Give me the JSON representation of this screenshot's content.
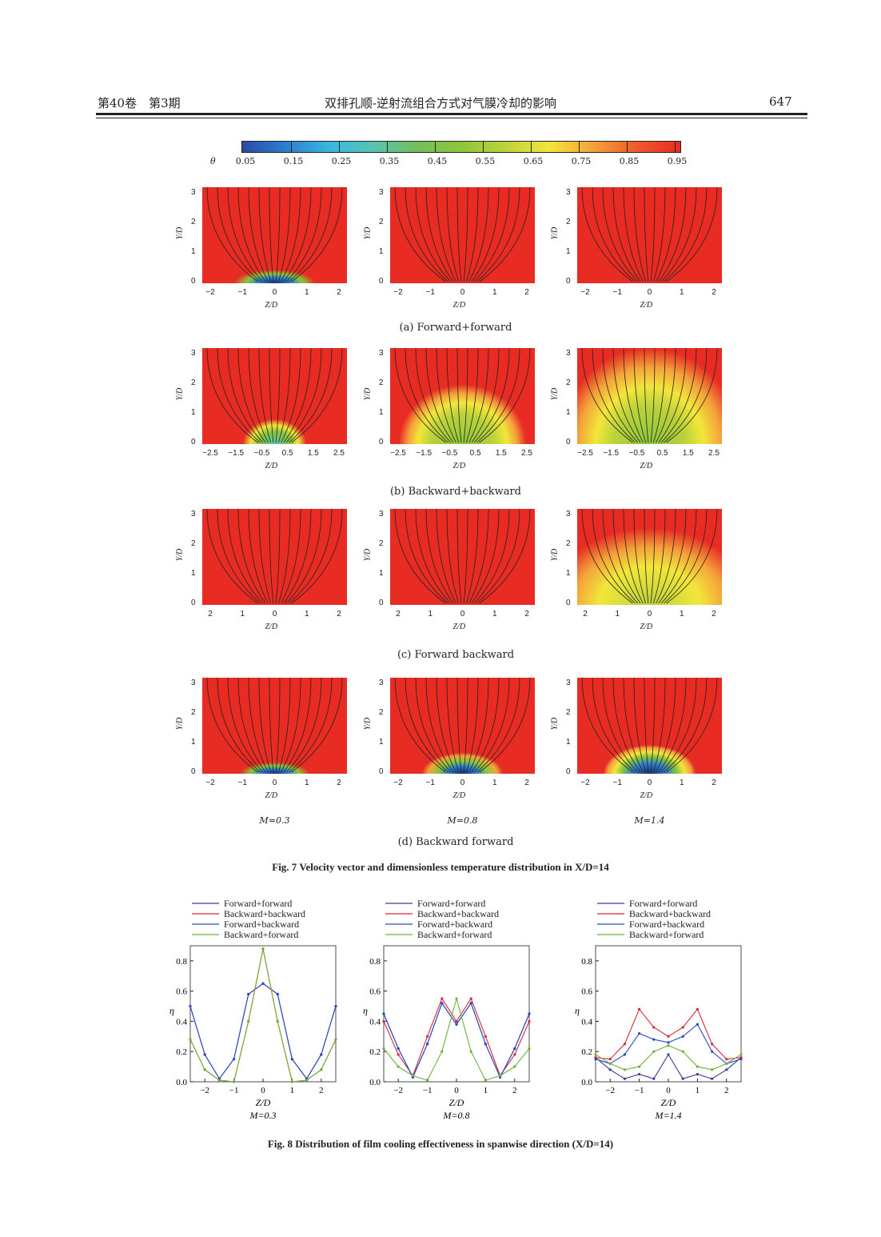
{
  "header": {
    "left": "第40卷　第3期",
    "center": "双排孔顺-逆射流组合方式对气膜冷却的影响",
    "page": "647"
  },
  "colorbar": {
    "symbol": "θ",
    "ticks": [
      "0.05",
      "0.15",
      "0.25",
      "0.35",
      "0.45",
      "0.55",
      "0.65",
      "0.75",
      "0.85",
      "0.95"
    ],
    "colors": [
      "#2a4aa8",
      "#2c7fd0",
      "#3ab7e0",
      "#58c3b0",
      "#74bf5a",
      "#8cc63a",
      "#bcd23a",
      "#f2e63a",
      "#f4a23a",
      "#ee5a2c",
      "#e82c24"
    ]
  },
  "fig7": {
    "rows": [
      {
        "label": "(a)  Forward+forward",
        "xticks": [
          "−2",
          "−1",
          "0",
          "1",
          "2"
        ]
      },
      {
        "label": "(b) Backward+backward",
        "xticks": [
          "−2.5",
          "−1.5",
          "−0.5",
          "0.5",
          "1.5",
          "2.5"
        ]
      },
      {
        "label": "(c) Forward  backward",
        "xticks": [
          "2",
          "1",
          "0",
          "1",
          "2"
        ]
      },
      {
        "label": "(d) Backward  forward",
        "xticks": [
          "−2",
          "−1",
          "0",
          "1",
          "2"
        ]
      }
    ],
    "yticks": [
      "0",
      "1",
      "2",
      "3"
    ],
    "xlabel": "Z/D",
    "ylabel": "Y/D",
    "m_labels": [
      "M=0.3",
      "M=0.8",
      "M=1.4"
    ],
    "caption": "Fig. 7    Velocity vector and dimensionless temperature distribution in X/D=14"
  },
  "fig8": {
    "caption": "Fig. 8    Distribution of film cooling effectiveness in spanwise direction (X/D=14)",
    "legend": [
      "Forward+forward",
      "Backward+backward",
      "Forward+backward",
      "Backward+forward"
    ],
    "legend_colors": [
      "#3a3fa0",
      "#d8283a",
      "#2a4ac0",
      "#6fb23a"
    ],
    "ylabel": "η",
    "xlabel": "Z/D",
    "yticks": [
      "0.0",
      "0.2",
      "0.4",
      "0.6",
      "0.8"
    ],
    "xticks": [
      "−2",
      "−1",
      "0",
      "1",
      "2"
    ],
    "m_labels": [
      "M=0.3",
      "M=0.8",
      "M=1.4"
    ]
  },
  "chart_data": {
    "type": "line",
    "xlabel": "Z/D",
    "ylabel": "η",
    "ylim": [
      0,
      0.9
    ],
    "xlim": [
      -2.5,
      2.5
    ],
    "x": [
      -2.5,
      -2.0,
      -1.5,
      -1.0,
      -0.5,
      0,
      0.5,
      1.0,
      1.5,
      2.0,
      2.5
    ],
    "panels": [
      {
        "label": "M=0.3",
        "series": [
          {
            "name": "Forward+forward",
            "values": [
              0.5,
              0.18,
              0.02,
              0.15,
              0.58,
              0.65,
              0.58,
              0.15,
              0.02,
              0.18,
              0.5
            ]
          },
          {
            "name": "Backward+backward",
            "values": [
              0.28,
              0.08,
              0.01,
              0.0,
              0.4,
              0.88,
              0.4,
              0.0,
              0.01,
              0.08,
              0.28
            ]
          },
          {
            "name": "Forward+backward",
            "values": [
              0.5,
              0.18,
              0.02,
              0.15,
              0.58,
              0.65,
              0.58,
              0.15,
              0.02,
              0.18,
              0.5
            ]
          },
          {
            "name": "Backward+forward",
            "values": [
              0.28,
              0.08,
              0.01,
              0.0,
              0.4,
              0.88,
              0.4,
              0.0,
              0.01,
              0.08,
              0.28
            ]
          }
        ]
      },
      {
        "label": "M=0.8",
        "series": [
          {
            "name": "Forward+forward",
            "values": [
              0.45,
              0.22,
              0.03,
              0.25,
              0.52,
              0.38,
              0.52,
              0.25,
              0.03,
              0.22,
              0.45
            ]
          },
          {
            "name": "Backward+backward",
            "values": [
              0.4,
              0.18,
              0.04,
              0.3,
              0.55,
              0.4,
              0.55,
              0.3,
              0.04,
              0.18,
              0.4
            ]
          },
          {
            "name": "Forward+backward",
            "values": [
              0.45,
              0.22,
              0.03,
              0.25,
              0.52,
              0.38,
              0.52,
              0.25,
              0.03,
              0.22,
              0.45
            ]
          },
          {
            "name": "Backward+forward",
            "values": [
              0.22,
              0.1,
              0.04,
              0.01,
              0.2,
              0.55,
              0.2,
              0.01,
              0.04,
              0.1,
              0.22
            ]
          }
        ]
      },
      {
        "label": "M=1.4",
        "series": [
          {
            "name": "Forward+forward",
            "values": [
              0.16,
              0.08,
              0.02,
              0.05,
              0.02,
              0.18,
              0.02,
              0.05,
              0.02,
              0.08,
              0.16
            ]
          },
          {
            "name": "Backward+backward",
            "values": [
              0.16,
              0.15,
              0.25,
              0.48,
              0.36,
              0.3,
              0.36,
              0.48,
              0.25,
              0.15,
              0.16
            ]
          },
          {
            "name": "Forward+backward",
            "values": [
              0.15,
              0.12,
              0.18,
              0.32,
              0.28,
              0.26,
              0.3,
              0.38,
              0.2,
              0.12,
              0.15
            ]
          },
          {
            "name": "Backward+forward",
            "values": [
              0.18,
              0.12,
              0.08,
              0.1,
              0.2,
              0.24,
              0.2,
              0.1,
              0.08,
              0.12,
              0.18
            ]
          }
        ]
      }
    ]
  }
}
